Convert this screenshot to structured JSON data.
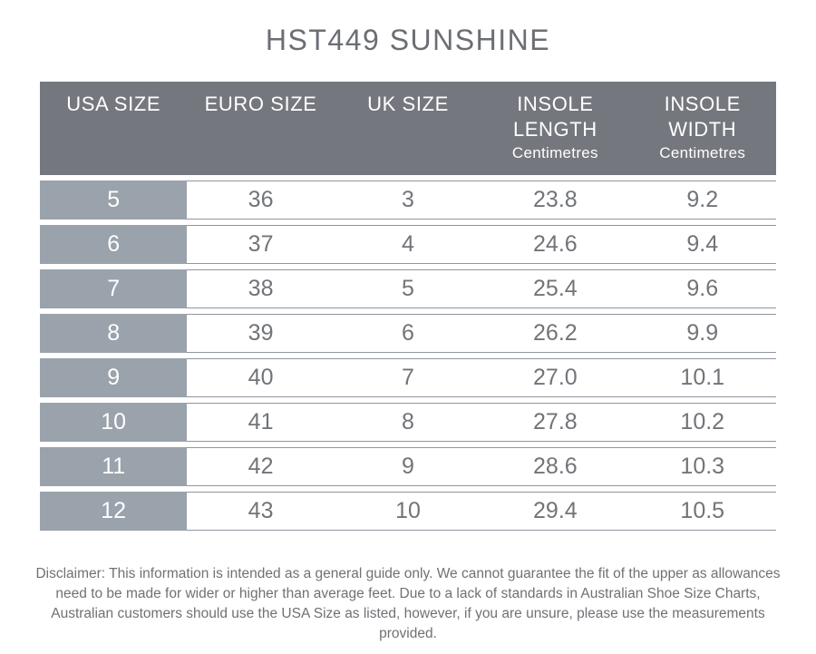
{
  "title": "HST449 SUNSHINE",
  "table": {
    "headers": [
      {
        "label": "USA SIZE",
        "sub": ""
      },
      {
        "label": "EURO SIZE",
        "sub": ""
      },
      {
        "label": "UK SIZE",
        "sub": ""
      },
      {
        "label": "INSOLE LENGTH",
        "sub": "Centimetres"
      },
      {
        "label": "INSOLE WIDTH",
        "sub": "Centimetres"
      }
    ]
  },
  "chart_data": {
    "type": "table",
    "title": "HST449 SUNSHINE",
    "columns": [
      "USA SIZE",
      "EURO SIZE",
      "UK SIZE",
      "INSOLE LENGTH (Centimetres)",
      "INSOLE WIDTH (Centimetres)"
    ],
    "rows": [
      [
        "5",
        "36",
        "3",
        "23.8",
        "9.2"
      ],
      [
        "6",
        "37",
        "4",
        "24.6",
        "9.4"
      ],
      [
        "7",
        "38",
        "5",
        "25.4",
        "9.6"
      ],
      [
        "8",
        "39",
        "6",
        "26.2",
        "9.9"
      ],
      [
        "9",
        "40",
        "7",
        "27.0",
        "10.1"
      ],
      [
        "10",
        "41",
        "8",
        "27.8",
        "10.2"
      ],
      [
        "11",
        "42",
        "9",
        "28.6",
        "10.3"
      ],
      [
        "12",
        "43",
        "10",
        "29.4",
        "10.5"
      ]
    ]
  },
  "disclaimer": "Disclaimer: This information is intended as a general guide only. We cannot guarantee the fit of the upper as allowances need to be made for wider or higher than average feet. Due to a lack of standards in Australian Shoe Size Charts, Australian customers should use the USA Size as listed, however, if you are unsure, please use the measurements provided.",
  "colors": {
    "header_background": "#74777e",
    "header_text": "#ffffff",
    "first_column_background": "#9aa2ab",
    "first_column_text": "#ffffff",
    "row_border": "#8e969e",
    "cell_text": "#717478",
    "title_text": "#6b6e74",
    "disclaimer_text": "#6e7175",
    "page_background": "#ffffff"
  }
}
